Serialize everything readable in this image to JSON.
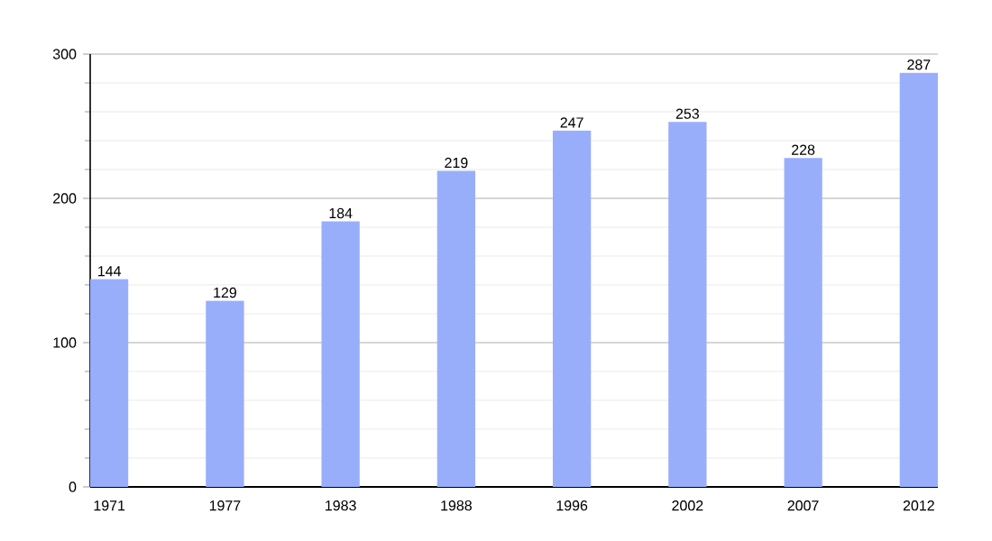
{
  "chart_data": {
    "type": "bar",
    "categories": [
      "1971",
      "1977",
      "1983",
      "1988",
      "1996",
      "2002",
      "2007",
      "2012"
    ],
    "values": [
      144,
      129,
      184,
      219,
      247,
      253,
      228,
      287
    ],
    "color": "#99aefb",
    "ylim": [
      0,
      300
    ],
    "yticks": [
      0,
      100,
      200,
      300
    ],
    "grid": "y",
    "data_labels": true
  }
}
